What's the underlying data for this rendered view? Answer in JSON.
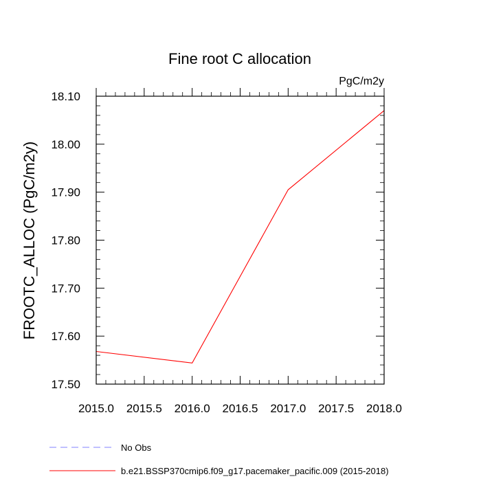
{
  "chart_data": {
    "type": "line",
    "title": "Fine root C allocation",
    "units": "PgC/m2y",
    "xlabel": "",
    "ylabel": "FROOTC_ALLOC  (PgC/m2y)",
    "xlim": [
      2015.0,
      2018.0
    ],
    "ylim": [
      17.5,
      18.1
    ],
    "x_ticks": [
      "2015.0",
      "2015.5",
      "2016.0",
      "2016.5",
      "2017.0",
      "2017.5",
      "2018.0"
    ],
    "y_ticks": [
      "17.50",
      "17.60",
      "17.70",
      "17.80",
      "17.90",
      "18.00",
      "18.10"
    ],
    "grid": false,
    "legend_position": "bottom",
    "series": [
      {
        "name": "b.e21.BSSP370cmip6.f09_g17.pacemaker_pacific.009 (2015-2018)",
        "color": "#ff0000",
        "dash": "solid",
        "x": [
          2015,
          2016,
          2017,
          2018
        ],
        "y": [
          17.568,
          17.544,
          17.905,
          18.07
        ]
      }
    ],
    "legend": [
      {
        "label": "No Obs",
        "color": "#8080ff",
        "dash": "dashed"
      },
      {
        "label": "b.e21.BSSP370cmip6.f09_g17.pacemaker_pacific.009 (2015-2018)",
        "color": "#ff0000",
        "dash": "solid"
      }
    ]
  }
}
